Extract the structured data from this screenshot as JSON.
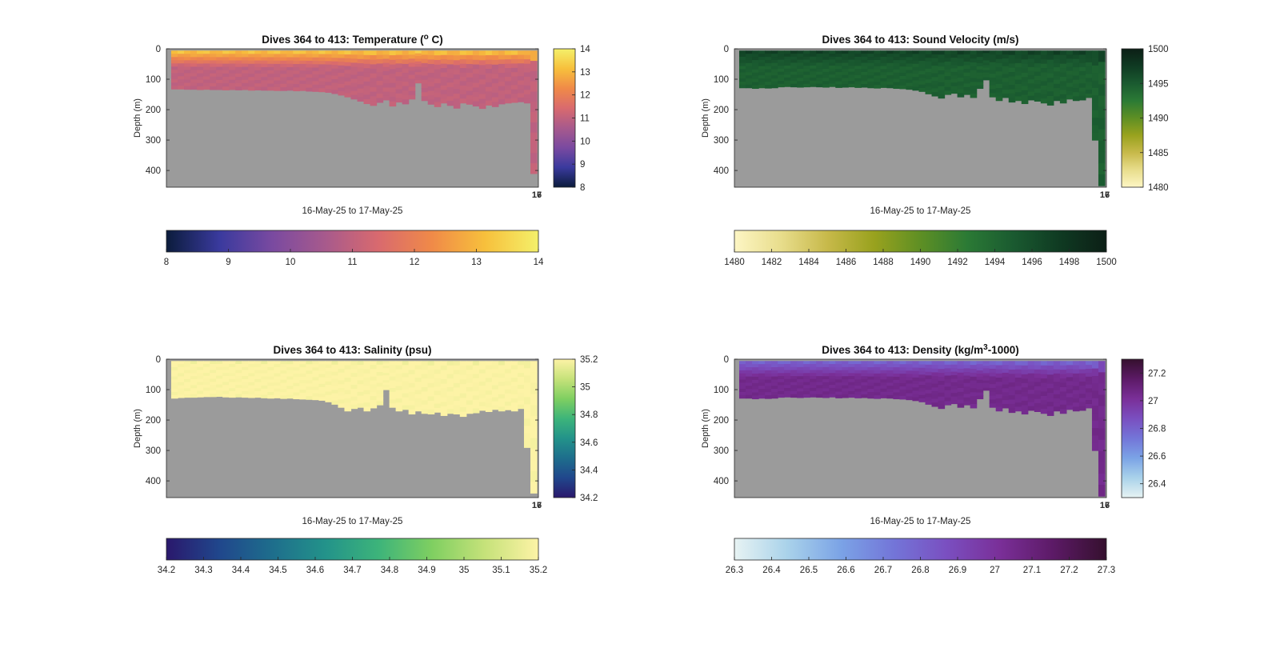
{
  "chart_data": [
    {
      "type": "heatmap",
      "title": "Dives 364 to 413: Temperature (",
      "title_sup": "o",
      "title_tail": " C)",
      "xlabel": "16-May-25 to 17-May-25",
      "ylabel": "Depth (m)",
      "x_tick_labels": [
        "16",
        "17"
      ],
      "yticks": [
        0,
        100,
        200,
        300,
        400
      ],
      "ylim": [
        0,
        455
      ],
      "colormap": [
        "#0b1c3c",
        "#3a3a9e",
        "#7a4aa0",
        "#a85a8c",
        "#d96a6e",
        "#f08a48",
        "#f7c03c",
        "#f4f06a"
      ],
      "colorbar_side_ticks": [
        "8",
        "9",
        "10",
        "11",
        "12",
        "13",
        "14"
      ],
      "colorbar_bottom_ticks": [
        "8",
        "9",
        "10",
        "11",
        "12",
        "13",
        "14"
      ],
      "clim": [
        8,
        14
      ],
      "profile_max_depths": [
        132,
        132,
        133,
        133,
        134,
        133,
        134,
        134,
        135,
        134,
        135,
        134,
        136,
        135,
        136,
        136,
        137,
        137,
        136,
        138,
        137,
        139,
        140,
        141,
        143,
        147,
        152,
        158,
        165,
        172,
        180,
        186,
        176,
        168,
        188,
        175,
        181,
        165,
        112,
        170,
        182,
        190,
        178,
        186,
        195,
        178,
        182,
        188,
        196,
        185,
        190,
        181,
        178,
        176,
        174,
        178,
        410
      ],
      "surface_value": 13.6,
      "deep_value": 11.0,
      "gradient_depth": 60
    },
    {
      "type": "heatmap",
      "title": "Dives 364 to 413: Sound Velocity (m/s)",
      "title_sup": "",
      "title_tail": "",
      "xlabel": "16-May-25 to 17-May-25",
      "ylabel": "Depth (m)",
      "x_tick_labels": [
        "16",
        "17"
      ],
      "yticks": [
        0,
        100,
        200,
        300,
        400
      ],
      "ylim": [
        0,
        455
      ],
      "colormap": [
        "#fdf6c4",
        "#e8dd8c",
        "#c7b94a",
        "#99a21e",
        "#5e8f24",
        "#2b7a35",
        "#1a5a30",
        "#0f3a22",
        "#0c1f16"
      ],
      "colorbar_side_ticks": [
        "1480",
        "1485",
        "1490",
        "1495",
        "1500"
      ],
      "colorbar_bottom_ticks": [
        "1480",
        "1482",
        "1484",
        "1486",
        "1488",
        "1490",
        "1492",
        "1494",
        "1496",
        "1498",
        "1500"
      ],
      "clim": [
        1480,
        1500
      ],
      "profile_max_depths": [
        128,
        128,
        130,
        128,
        129,
        128,
        125,
        124,
        125,
        126,
        125,
        124,
        125,
        126,
        124,
        127,
        126,
        125,
        127,
        126,
        128,
        129,
        127,
        128,
        130,
        131,
        133,
        136,
        140,
        148,
        155,
        162,
        150,
        146,
        158,
        150,
        160,
        130,
        102,
        158,
        170,
        160,
        175,
        170,
        180,
        168,
        172,
        178,
        185,
        170,
        178,
        165,
        170,
        168,
        160,
        300,
        450
      ],
      "surface_value": 1497.2,
      "deep_value": 1494.6,
      "gradient_depth": 60
    },
    {
      "type": "heatmap",
      "title": "Dives 364 to 413: Salinity (psu)",
      "title_sup": "",
      "title_tail": "",
      "xlabel": "16-May-25 to 17-May-25",
      "ylabel": "Depth (m)",
      "x_tick_labels": [
        "16",
        "17"
      ],
      "yticks": [
        0,
        100,
        200,
        300,
        400
      ],
      "ylim": [
        0,
        455
      ],
      "colormap": [
        "#2a186c",
        "#20478c",
        "#1e6e8c",
        "#23938a",
        "#3db47a",
        "#7fcf61",
        "#c6e27a",
        "#fdf3a6"
      ],
      "colorbar_side_ticks": [
        "34.2",
        "34.4",
        "34.6",
        "34.8",
        "35",
        "35.2"
      ],
      "colorbar_bottom_ticks": [
        "34.2",
        "34.3",
        "34.4",
        "34.5",
        "34.6",
        "34.7",
        "34.8",
        "34.9",
        "35",
        "35.1",
        "35.2"
      ],
      "clim": [
        34.2,
        35.2
      ],
      "profile_max_depths": [
        128,
        126,
        125,
        125,
        124,
        123,
        123,
        122,
        124,
        125,
        124,
        125,
        126,
        125,
        127,
        128,
        127,
        129,
        128,
        130,
        131,
        132,
        133,
        135,
        140,
        148,
        158,
        170,
        162,
        158,
        170,
        160,
        150,
        100,
        158,
        170,
        165,
        180,
        170,
        178,
        180,
        174,
        185,
        178,
        180,
        188,
        178,
        176,
        168,
        172,
        165,
        170,
        166,
        170,
        162,
        290,
        440
      ],
      "surface_value": 35.2,
      "deep_value": 35.2,
      "gradient_depth": 60
    },
    {
      "type": "heatmap",
      "title": "Dives 364 to 413: Density (kg/m",
      "title_sup": "3",
      "title_tail": "-1000)",
      "xlabel": "16-May-25 to 17-May-25",
      "ylabel": "Depth (m)",
      "x_tick_labels": [
        "16",
        "17"
      ],
      "yticks": [
        0,
        100,
        200,
        300,
        400
      ],
      "ylim": [
        0,
        455
      ],
      "colormap": [
        "#e7f3f3",
        "#a9d2ea",
        "#7ba3e6",
        "#7375d8",
        "#7a4fc0",
        "#7a2f98",
        "#5c1a66",
        "#35102e"
      ],
      "colorbar_side_ticks": [
        "26.4",
        "26.6",
        "26.8",
        "27",
        "27.2"
      ],
      "colorbar_bottom_ticks": [
        "26.3",
        "26.4",
        "26.5",
        "26.6",
        "26.7",
        "26.8",
        "26.9",
        "27",
        "27.1",
        "27.2",
        "27.3"
      ],
      "clim": [
        26.3,
        27.3
      ],
      "profile_max_depths": [
        128,
        128,
        130,
        128,
        129,
        128,
        125,
        124,
        125,
        126,
        125,
        124,
        125,
        126,
        124,
        127,
        126,
        125,
        127,
        126,
        128,
        129,
        127,
        128,
        130,
        131,
        133,
        136,
        140,
        148,
        155,
        162,
        150,
        146,
        158,
        150,
        160,
        130,
        102,
        158,
        170,
        160,
        175,
        170,
        180,
        168,
        172,
        178,
        185,
        170,
        178,
        165,
        170,
        168,
        160,
        300,
        450
      ],
      "surface_value": 26.75,
      "deep_value": 27.05,
      "gradient_depth": 60
    }
  ],
  "colors": {
    "land_gray": "#9b9b9b",
    "axis_line": "#262626",
    "text": "#262626"
  }
}
